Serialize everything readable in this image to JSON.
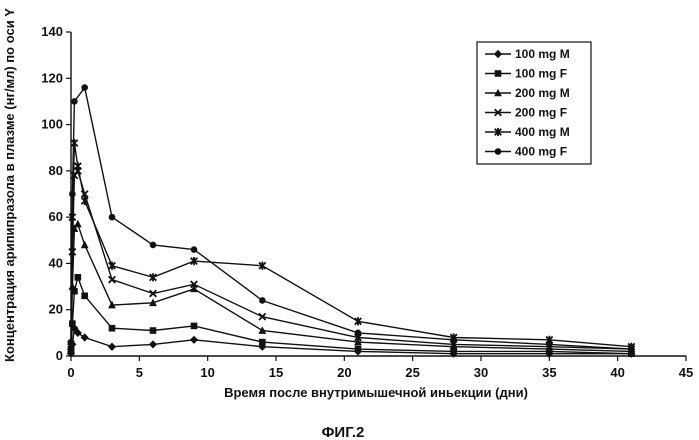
{
  "figure_label": "ФИГ.2",
  "chart_data": {
    "type": "line",
    "title": "",
    "xlabel": "Время после внутримышечной иньекции (дни)",
    "ylabel": "Концентрация арипипразола в плазме (нг/мл) по оси Y",
    "xlim": [
      0,
      45
    ],
    "ylim": [
      0,
      140
    ],
    "xticks": [
      0,
      5,
      10,
      15,
      20,
      25,
      30,
      35,
      40,
      45
    ],
    "yticks": [
      0,
      20,
      40,
      60,
      80,
      100,
      120,
      140
    ],
    "grid": false,
    "legend_position": "top-right",
    "series": [
      {
        "name": "100 mg M",
        "marker": "diamond",
        "points": [
          [
            0,
            1
          ],
          [
            0.1,
            5
          ],
          [
            0.25,
            12
          ],
          [
            0.5,
            10
          ],
          [
            1,
            8
          ],
          [
            3,
            4
          ],
          [
            6,
            5
          ],
          [
            9,
            7
          ],
          [
            14,
            4
          ],
          [
            21,
            2
          ],
          [
            28,
            1
          ],
          [
            35,
            1
          ],
          [
            41,
            1
          ]
        ]
      },
      {
        "name": "100 mg F",
        "marker": "square",
        "points": [
          [
            0,
            2
          ],
          [
            0.1,
            14
          ],
          [
            0.25,
            28
          ],
          [
            0.5,
            34
          ],
          [
            1,
            26
          ],
          [
            3,
            12
          ],
          [
            6,
            11
          ],
          [
            9,
            13
          ],
          [
            14,
            6
          ],
          [
            21,
            3
          ],
          [
            28,
            2
          ],
          [
            35,
            2
          ],
          [
            41,
            1
          ]
        ]
      },
      {
        "name": "200 mg M",
        "marker": "triangle",
        "points": [
          [
            0,
            3
          ],
          [
            0.1,
            30
          ],
          [
            0.25,
            55
          ],
          [
            0.5,
            57
          ],
          [
            1,
            48
          ],
          [
            3,
            22
          ],
          [
            6,
            23
          ],
          [
            9,
            29
          ],
          [
            14,
            11
          ],
          [
            21,
            6
          ],
          [
            28,
            4
          ],
          [
            35,
            3
          ],
          [
            41,
            2
          ]
        ]
      },
      {
        "name": "200 mg F",
        "marker": "x",
        "points": [
          [
            0,
            4
          ],
          [
            0.1,
            45
          ],
          [
            0.25,
            78
          ],
          [
            0.5,
            80
          ],
          [
            1,
            70
          ],
          [
            3,
            33
          ],
          [
            6,
            27
          ],
          [
            9,
            31
          ],
          [
            14,
            17
          ],
          [
            21,
            8
          ],
          [
            28,
            5
          ],
          [
            35,
            4
          ],
          [
            41,
            3
          ]
        ]
      },
      {
        "name": "400 mg M",
        "marker": "asterisk",
        "points": [
          [
            0,
            5
          ],
          [
            0.1,
            60
          ],
          [
            0.25,
            92
          ],
          [
            0.5,
            82
          ],
          [
            1,
            67
          ],
          [
            3,
            39
          ],
          [
            6,
            34
          ],
          [
            9,
            41
          ],
          [
            14,
            39
          ],
          [
            21,
            15
          ],
          [
            28,
            8
          ],
          [
            35,
            7
          ],
          [
            41,
            4
          ]
        ]
      },
      {
        "name": "400 mg F",
        "marker": "circle",
        "points": [
          [
            0,
            6
          ],
          [
            0.1,
            70
          ],
          [
            0.25,
            110
          ],
          [
            1,
            116
          ],
          [
            3,
            60
          ],
          [
            6,
            48
          ],
          [
            9,
            46
          ],
          [
            14,
            24
          ],
          [
            21,
            10
          ],
          [
            28,
            7
          ],
          [
            35,
            5
          ],
          [
            41,
            3
          ]
        ]
      }
    ]
  }
}
